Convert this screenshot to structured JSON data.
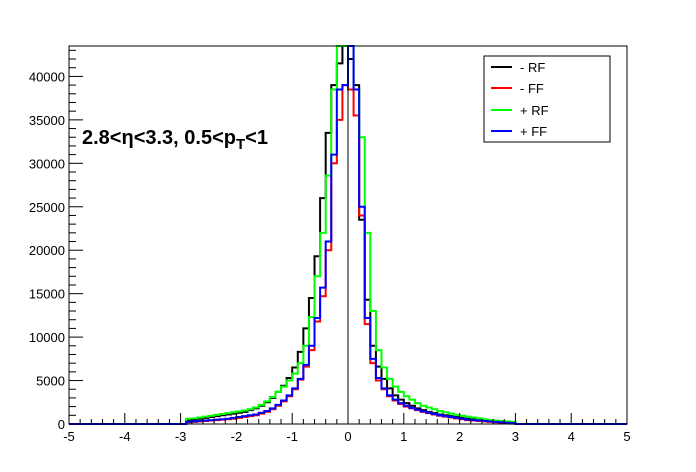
{
  "chart_data": {
    "type": "line",
    "style": "step-histogram",
    "xlim": [
      -5,
      5
    ],
    "ylim": [
      0,
      43500
    ],
    "x_ticks": [
      -5,
      -4,
      -3,
      -2,
      -1,
      0,
      1,
      2,
      3,
      4,
      5
    ],
    "y_ticks": [
      0,
      5000,
      10000,
      15000,
      20000,
      25000,
      30000,
      35000,
      40000
    ],
    "annotation": {
      "main": "2.8<η<3.3, 0.5<p",
      "subscript": "T",
      "tail": "<1"
    },
    "legend_position": "top-right",
    "bin_edges": [
      -5.0,
      -2.9,
      -2.8,
      -2.7,
      -2.6,
      -2.5,
      -2.4,
      -2.3,
      -2.2,
      -2.1,
      -2.0,
      -1.9,
      -1.8,
      -1.7,
      -1.6,
      -1.5,
      -1.4,
      -1.3,
      -1.2,
      -1.1,
      -1.0,
      -0.9,
      -0.8,
      -0.7,
      -0.6,
      -0.5,
      -0.4,
      -0.3,
      -0.2,
      -0.1,
      0.0,
      0.1,
      0.2,
      0.3,
      0.4,
      0.5,
      0.6,
      0.7,
      0.8,
      0.9,
      1.0,
      1.1,
      1.2,
      1.3,
      1.4,
      1.5,
      1.6,
      1.7,
      1.8,
      1.9,
      2.0,
      2.1,
      2.2,
      2.3,
      2.4,
      2.5,
      2.6,
      2.7,
      2.8,
      2.9,
      3.0,
      5.0
    ],
    "series": [
      {
        "name": "- RF",
        "color": "#000000",
        "values": [
          0,
          400,
          500,
          600,
          700,
          800,
          900,
          1000,
          1100,
          1200,
          1300,
          1400,
          1600,
          1800,
          2100,
          2500,
          3000,
          3700,
          4400,
          5300,
          6500,
          8300,
          11000,
          14500,
          19300,
          26000,
          33500,
          39000,
          41500,
          43500,
          42000,
          39000,
          23500,
          14300,
          9000,
          6600,
          5200,
          4100,
          3300,
          2800,
          2400,
          2100,
          1800,
          1600,
          1400,
          1250,
          1100,
          1000,
          900,
          800,
          700,
          600,
          550,
          500,
          450,
          400,
          350,
          300,
          250,
          200,
          0
        ]
      },
      {
        "name": "- FF",
        "color": "#ff0000",
        "values": [
          0,
          200,
          250,
          300,
          350,
          400,
          450,
          500,
          550,
          600,
          700,
          800,
          900,
          1000,
          1200,
          1400,
          1700,
          2100,
          2600,
          3200,
          4000,
          5100,
          6600,
          8500,
          11800,
          14700,
          20000,
          30000,
          35000,
          39000,
          38500,
          35500,
          24000,
          11500,
          7000,
          5000,
          4000,
          3200,
          2700,
          2300,
          2000,
          1800,
          1600,
          1400,
          1250,
          1100,
          950,
          850,
          750,
          650,
          550,
          450,
          400,
          350,
          300,
          250,
          200,
          150,
          100,
          50,
          0
        ]
      },
      {
        "name": "+ RF",
        "color": "#00ff00",
        "values": [
          0,
          600,
          650,
          750,
          850,
          950,
          1050,
          1150,
          1250,
          1350,
          1450,
          1550,
          1700,
          1900,
          2200,
          2600,
          3100,
          3700,
          4300,
          5000,
          5800,
          7000,
          9000,
          12300,
          17000,
          22000,
          28600,
          38500,
          43500,
          43500,
          43500,
          38500,
          33000,
          22000,
          13000,
          8500,
          6500,
          5200,
          4300,
          3700,
          3200,
          2800,
          2400,
          2100,
          1900,
          1700,
          1500,
          1350,
          1200,
          1050,
          950,
          850,
          750,
          650,
          550,
          450,
          400,
          350,
          300,
          250,
          0
        ]
      },
      {
        "name": "+ FF",
        "color": "#0000ff",
        "values": [
          0,
          250,
          300,
          350,
          400,
          450,
          500,
          550,
          600,
          700,
          800,
          900,
          1000,
          1100,
          1300,
          1500,
          1800,
          2200,
          2700,
          3300,
          4100,
          5200,
          6800,
          9000,
          12200,
          15700,
          21000,
          31000,
          38500,
          39000,
          43500,
          38500,
          25000,
          12200,
          7500,
          5300,
          4100,
          3300,
          2800,
          2400,
          2100,
          1850,
          1650,
          1450,
          1300,
          1150,
          1000,
          900,
          800,
          700,
          600,
          500,
          450,
          400,
          350,
          300,
          250,
          200,
          150,
          100,
          0
        ]
      }
    ]
  }
}
